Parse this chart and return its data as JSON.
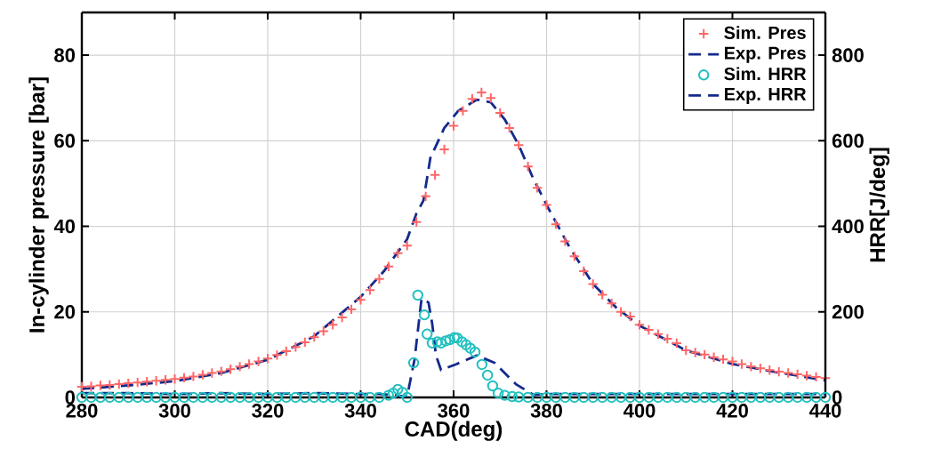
{
  "chart_data": {
    "type": "line",
    "xlabel": "CAD(deg)",
    "ylabel": "In-cylinder pressure [bar]",
    "y2label": "HRR[J/deg]",
    "xlim": [
      280,
      440
    ],
    "xticks": [
      280,
      300,
      320,
      340,
      360,
      380,
      400,
      420,
      440
    ],
    "ylim": [
      0,
      90
    ],
    "yticks": [
      0,
      20,
      40,
      60,
      80
    ],
    "y2lim": [
      0,
      900
    ],
    "y2ticks": [
      0,
      200,
      400,
      600,
      800
    ],
    "grid": true,
    "legend": "top right",
    "series": [
      {
        "name": "Sim. Pres",
        "type": "scatter",
        "marker": "cross",
        "color": "#ff6666",
        "x": [
          280,
          282,
          284,
          286,
          288,
          290,
          292,
          294,
          296,
          298,
          300,
          302,
          304,
          306,
          308,
          310,
          312,
          314,
          316,
          318,
          320,
          322,
          324,
          326,
          328,
          330,
          332,
          334,
          336,
          338,
          340,
          342,
          344,
          346,
          348,
          350,
          352,
          354,
          356,
          358,
          360,
          362,
          364,
          366,
          368,
          370,
          372,
          374,
          376,
          378,
          380,
          382,
          384,
          386,
          388,
          390,
          392,
          394,
          396,
          398,
          400,
          402,
          404,
          406,
          408,
          410,
          412,
          414,
          416,
          418,
          420,
          422,
          424,
          426,
          428,
          430,
          432,
          434,
          436,
          438,
          440
        ],
        "values": [
          2.5,
          2.6,
          2.8,
          2.9,
          3.1,
          3.3,
          3.5,
          3.7,
          3.9,
          4.1,
          4.3,
          4.6,
          4.9,
          5.3,
          5.7,
          6.1,
          6.6,
          7.2,
          7.8,
          8.4,
          9.1,
          9.9,
          10.8,
          11.8,
          12.9,
          14.1,
          15.5,
          17.0,
          18.7,
          20.6,
          22.8,
          25.1,
          27.7,
          30.6,
          33.7,
          35.5,
          41,
          47,
          52,
          58,
          63.5,
          67,
          69.8,
          71.3,
          70,
          66.5,
          63,
          59,
          54,
          49,
          45,
          40.5,
          36.5,
          33,
          29.5,
          26.5,
          24,
          22,
          20,
          18.9,
          17,
          15.8,
          14.8,
          13.7,
          12.7,
          11,
          10.5,
          10,
          9.4,
          8.9,
          8.4,
          7.8,
          7.2,
          6.8,
          6.4,
          6,
          5.7,
          5.4,
          5.1,
          4.8,
          4.5
        ]
      },
      {
        "name": "Exp. Pres",
        "line_style": "dashed",
        "color": "#142a8c",
        "x": [
          280,
          290,
          300,
          310,
          320,
          330,
          340,
          345,
          350,
          352,
          353.5,
          355,
          358,
          361,
          365,
          368,
          371,
          374,
          377,
          380,
          385,
          390,
          395,
          400,
          410,
          420,
          430,
          440
        ],
        "values": [
          2,
          2.8,
          3.8,
          5.7,
          8.8,
          14.3,
          23.5,
          29.5,
          37,
          43,
          46,
          56,
          63,
          67,
          69.6,
          69,
          65,
          59,
          51.5,
          45,
          35,
          26.5,
          21,
          16.8,
          11,
          7.8,
          5.8,
          4
        ]
      },
      {
        "name": "Sim. HRR",
        "type": "scatter",
        "marker": "circle",
        "color": "#22c0c0",
        "axis": "y2",
        "x": [
          280,
          282,
          284,
          286,
          288,
          290,
          292,
          294,
          296,
          298,
          300,
          302,
          304,
          306,
          308,
          310,
          312,
          314,
          316,
          318,
          320,
          322,
          324,
          326,
          328,
          330,
          332,
          334,
          336,
          338,
          340,
          342,
          344,
          346,
          347,
          348,
          349,
          350,
          351.4,
          352.3,
          353.7,
          354.3,
          355.4,
          356.5,
          357.3,
          358.3,
          359.2,
          360.2,
          360.8,
          361.8,
          362.7,
          363.6,
          364.6,
          366.1,
          367.3,
          368.4,
          369.6,
          371,
          372.6,
          374,
          376,
          378,
          380,
          382,
          384,
          386,
          388,
          390,
          392,
          394,
          396,
          398,
          400,
          402,
          404,
          406,
          408,
          410,
          412,
          414,
          416,
          418,
          420,
          422,
          424,
          426,
          428,
          430,
          432,
          434,
          436,
          438,
          440
        ],
        "values": [
          0,
          0,
          0,
          0,
          0,
          0,
          0,
          0,
          0,
          0,
          0,
          0,
          0,
          0,
          0,
          0,
          0,
          0,
          0,
          0,
          0,
          0,
          0,
          0,
          0,
          0,
          0,
          0,
          0,
          0,
          0,
          0,
          0,
          5,
          10,
          19,
          12,
          0,
          81,
          239,
          193,
          148,
          127,
          130,
          127,
          132,
          135,
          140,
          139,
          130,
          123,
          115,
          106,
          77,
          52,
          27,
          10,
          5,
          2,
          1,
          0,
          0,
          0,
          0,
          0,
          0,
          0,
          0,
          0,
          0,
          0,
          0,
          0,
          0,
          0,
          0,
          0,
          0,
          0,
          0,
          0,
          0,
          0,
          0,
          0,
          0,
          0,
          0,
          0,
          0,
          0,
          0,
          0
        ]
      },
      {
        "name": "Exp. HRR",
        "line_style": "dashed",
        "color": "#142a8c",
        "axis": "y2",
        "x": [
          280,
          290,
          300,
          310,
          320,
          330,
          340,
          344,
          346.6,
          350,
          351.6,
          353.1,
          354.6,
          355.4,
          356.2,
          357.3,
          360.4,
          365,
          368.8,
          373.4,
          377.2,
          380,
          400,
          420,
          440
        ],
        "values": [
          10,
          10,
          8,
          10,
          8,
          10,
          8,
          8,
          6,
          2,
          89,
          231,
          222,
          172,
          98,
          64,
          77,
          98,
          81,
          31,
          6,
          8,
          8,
          8,
          8
        ]
      }
    ]
  }
}
